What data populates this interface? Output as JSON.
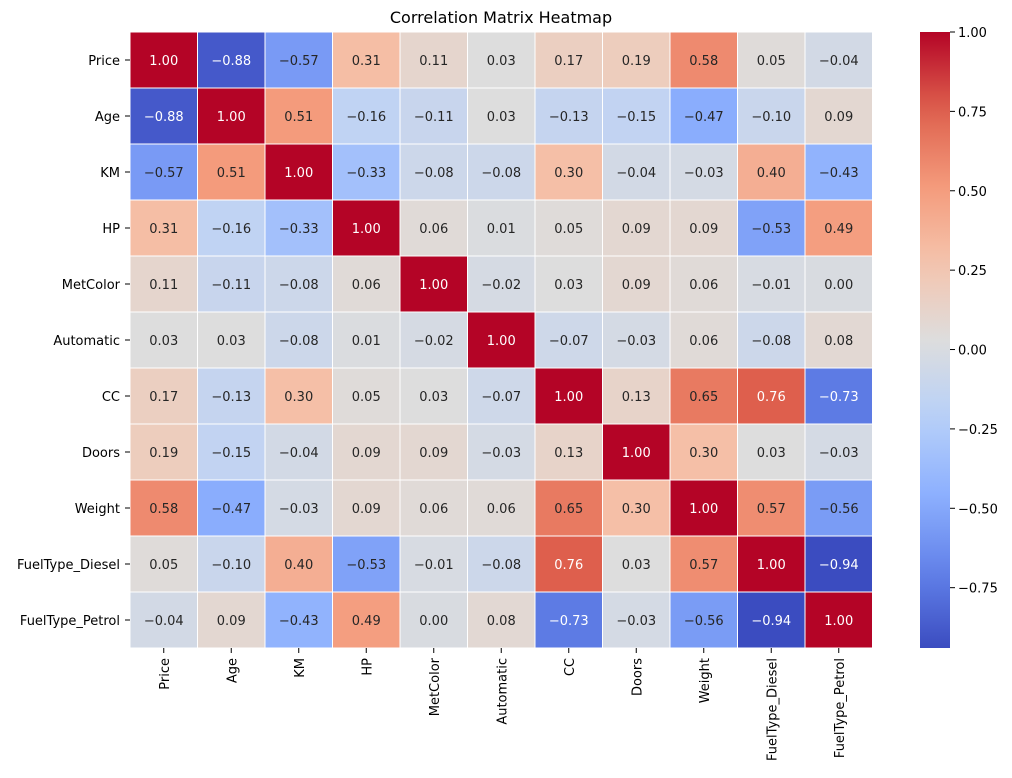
{
  "chart_data": {
    "type": "heatmap",
    "title": "Correlation Matrix Heatmap",
    "xlabel": "",
    "ylabel": "",
    "colormap": "coolwarm",
    "vmin": -0.94,
    "vmax": 1.0,
    "labels": [
      "Price",
      "Age",
      "KM",
      "HP",
      "MetColor",
      "Automatic",
      "CC",
      "Doors",
      "Weight",
      "FuelType_Diesel",
      "FuelType_Petrol"
    ],
    "values": [
      [
        1.0,
        -0.88,
        -0.57,
        0.31,
        0.11,
        0.03,
        0.17,
        0.19,
        0.58,
        0.05,
        -0.04
      ],
      [
        -0.88,
        1.0,
        0.51,
        -0.16,
        -0.11,
        0.03,
        -0.13,
        -0.15,
        -0.47,
        -0.1,
        0.09
      ],
      [
        -0.57,
        0.51,
        1.0,
        -0.33,
        -0.08,
        -0.08,
        0.3,
        -0.04,
        -0.03,
        0.4,
        -0.43
      ],
      [
        0.31,
        -0.16,
        -0.33,
        1.0,
        0.06,
        0.01,
        0.05,
        0.09,
        0.09,
        -0.53,
        0.49
      ],
      [
        0.11,
        -0.11,
        -0.08,
        0.06,
        1.0,
        -0.02,
        0.03,
        0.09,
        0.06,
        -0.01,
        0.0
      ],
      [
        0.03,
        0.03,
        -0.08,
        0.01,
        -0.02,
        1.0,
        -0.07,
        -0.03,
        0.06,
        -0.08,
        0.08
      ],
      [
        0.17,
        -0.13,
        0.3,
        0.05,
        0.03,
        -0.07,
        1.0,
        0.13,
        0.65,
        0.76,
        -0.73
      ],
      [
        0.19,
        -0.15,
        -0.04,
        0.09,
        0.09,
        -0.03,
        0.13,
        1.0,
        0.3,
        0.03,
        -0.03
      ],
      [
        0.58,
        -0.47,
        -0.03,
        0.09,
        0.06,
        0.06,
        0.65,
        0.3,
        1.0,
        0.57,
        -0.56
      ],
      [
        0.05,
        -0.1,
        0.4,
        -0.53,
        -0.01,
        -0.08,
        0.76,
        0.03,
        0.57,
        1.0,
        -0.94
      ],
      [
        -0.04,
        0.09,
        -0.43,
        0.49,
        0.0,
        0.08,
        -0.73,
        -0.03,
        -0.56,
        -0.94,
        1.0
      ]
    ],
    "colorbar_ticks": [
      1.0,
      0.75,
      0.5,
      0.25,
      0.0,
      -0.25,
      -0.5,
      -0.75
    ],
    "colorbar_tick_labels": [
      "1.00",
      "0.75",
      "0.50",
      "0.25",
      "0.00",
      "−0.25",
      "−0.50",
      "−0.75"
    ],
    "grid": true,
    "legend": "colorbar-right"
  }
}
